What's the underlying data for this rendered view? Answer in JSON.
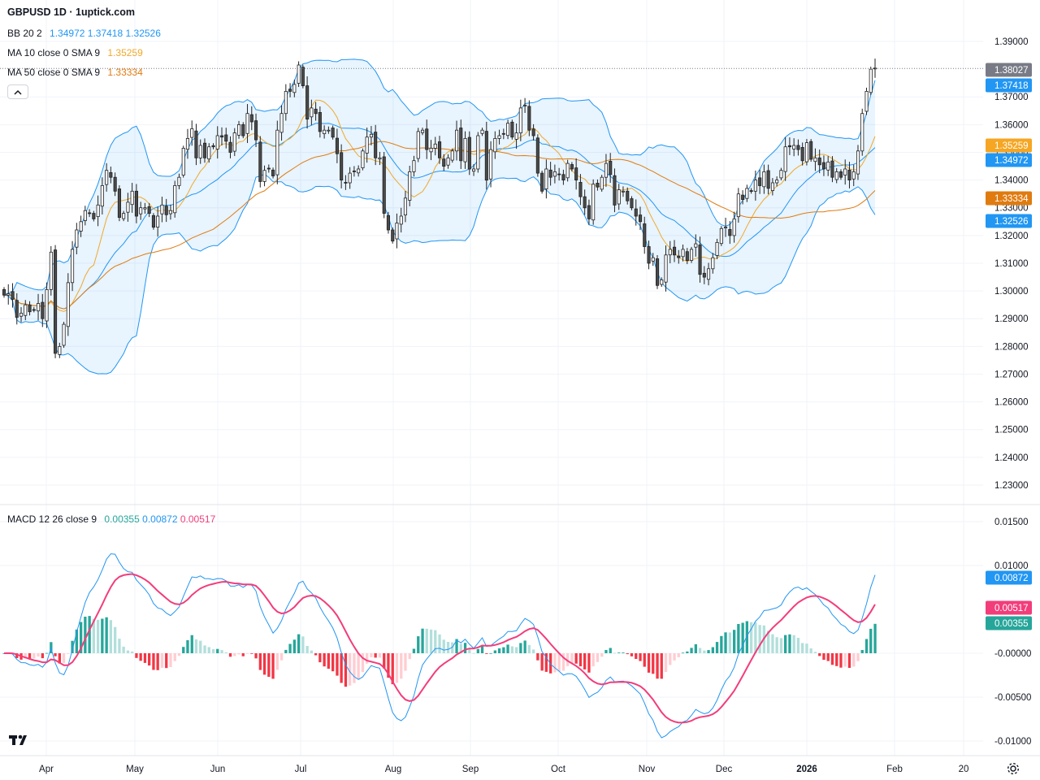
{
  "header": {
    "title": "GBPUSD 1D · 1uptick.com",
    "bb": {
      "label": "BB 20 2",
      "basis": "1.34972",
      "upper": "1.37418",
      "lower": "1.32526"
    },
    "ma10": {
      "label": "MA 10 close 0 SMA 9",
      "value": "1.35259"
    },
    "ma50": {
      "label": "MA 50 close 0 SMA 9",
      "value": "1.33334"
    },
    "macd": {
      "label": "MACD 12 26 close 9",
      "hist": "0.00355",
      "macd": "0.00872",
      "signal": "0.00517"
    }
  },
  "colors": {
    "up_body": "#ffffff",
    "down_body": "#4a4a4a",
    "wick": "#222222",
    "bb_band": "#2196f3",
    "bb_fill": "#2196f31a",
    "ma10": "#f0a92a",
    "ma50": "#e07b0f",
    "macd_line": "#2196f3",
    "signal_line": "#f23d7b",
    "hist_pos_strong": "#26a69a",
    "hist_pos_weak": "#b2dfdb",
    "hist_neg_strong": "#f23645",
    "hist_neg_weak": "#ffcdd2",
    "last_price": "#787b86"
  },
  "icons": {
    "logo": "tradingview-logo-icon",
    "settings": "gear-icon",
    "collapse": "chevron-up-icon"
  },
  "chart_data": [
    {
      "type": "candlestick",
      "title": "GBPUSD 1D · 1uptick.com",
      "ylim": [
        1.2255,
        1.3925
      ],
      "y_ticks": [
        "1.39000",
        "1.37000",
        "1.36000",
        "1.35000",
        "1.34000",
        "1.33000",
        "1.32000",
        "1.31000",
        "1.30000",
        "1.29000",
        "1.28000",
        "1.27000",
        "1.26000",
        "1.25000",
        "1.24000",
        "1.23000"
      ],
      "x_ticks": [
        "Apr",
        "May",
        "Jun",
        "Jul",
        "Aug",
        "Sep",
        "Oct",
        "Nov",
        "Dec",
        "2026",
        "Feb",
        "20"
      ],
      "grid": true,
      "price_tags": [
        {
          "name": "last",
          "value": "1.38027"
        },
        {
          "name": "bb_upper",
          "value": "1.37418"
        },
        {
          "name": "ma10",
          "value": "1.35259"
        },
        {
          "name": "bb_basis",
          "value": "1.34972"
        },
        {
          "name": "ma50",
          "value": "1.33334"
        },
        {
          "name": "bb_lower",
          "value": "1.32526"
        }
      ],
      "close": [
        1.2985,
        1.299,
        1.297,
        1.2905,
        1.292,
        1.295,
        1.2925,
        1.2932,
        1.2955,
        1.29,
        1.3005,
        1.314,
        1.2775,
        1.28,
        1.288,
        1.303,
        1.315,
        1.322,
        1.325,
        1.329,
        1.328,
        1.326,
        1.331,
        1.338,
        1.3435,
        1.341,
        1.336,
        1.3265,
        1.328,
        1.332,
        1.336,
        1.327,
        1.33,
        1.33,
        1.328,
        1.323,
        1.327,
        1.331,
        1.3275,
        1.329,
        1.338,
        1.341,
        1.3515,
        1.355,
        1.3585,
        1.348,
        1.3525,
        1.348,
        1.352,
        1.352,
        1.356,
        1.3555,
        1.354,
        1.35,
        1.357,
        1.36,
        1.356,
        1.364,
        1.361,
        1.3545,
        1.3395,
        1.3435,
        1.344,
        1.3415,
        1.358,
        1.364,
        1.372,
        1.372,
        1.3745,
        1.3815,
        1.374,
        1.362,
        1.366,
        1.364,
        1.3575,
        1.358,
        1.358,
        1.3555,
        1.3495,
        1.34,
        1.339,
        1.3425,
        1.343,
        1.344,
        1.3505,
        1.3555,
        1.3565,
        1.348,
        1.348,
        1.328,
        1.322,
        1.318,
        1.3245,
        1.327,
        1.3335,
        1.343,
        1.347,
        1.3575,
        1.358,
        1.351,
        1.3515,
        1.353,
        1.348,
        1.345,
        1.348,
        1.3505,
        1.358,
        1.347,
        1.355,
        1.344,
        1.344,
        1.356,
        1.358,
        1.34,
        1.351,
        1.355,
        1.356,
        1.3565,
        1.3605,
        1.3555,
        1.357,
        1.366,
        1.367,
        1.358,
        1.356,
        1.3425,
        1.336,
        1.344,
        1.341,
        1.343,
        1.342,
        1.34,
        1.346,
        1.344,
        1.34,
        1.334,
        1.33,
        1.326,
        1.3385,
        1.3375,
        1.341,
        1.346,
        1.342,
        1.331,
        1.3365,
        1.336,
        1.3325,
        1.33,
        1.327,
        1.325,
        1.316,
        1.31,
        1.312,
        1.302,
        1.304,
        1.313,
        1.315,
        1.313,
        1.312,
        1.315,
        1.311,
        1.315,
        1.317,
        1.306,
        1.305,
        1.308,
        1.312,
        1.3175,
        1.3225,
        1.323,
        1.32,
        1.326,
        1.335,
        1.333,
        1.337,
        1.336,
        1.34,
        1.338,
        1.343,
        1.337,
        1.339,
        1.34,
        1.3435,
        1.352,
        1.352,
        1.3525,
        1.351,
        1.347,
        1.3535,
        1.3475,
        1.348,
        1.3455,
        1.344,
        1.3465,
        1.341,
        1.343,
        1.341,
        1.344,
        1.34,
        1.343,
        1.3505,
        1.364,
        1.372,
        1.38,
        1.3803
      ],
      "high_low_note": "OHLC per session approximated from the rendered candles",
      "bollinger": {
        "period": 20,
        "mult": 2,
        "basis": 1.34972,
        "upper": 1.37418,
        "lower": 1.32526
      },
      "ma10_last": 1.35259,
      "ma50_last": 1.33334
    },
    {
      "type": "macd",
      "title": "MACD 12 26 close 9",
      "ylim": [
        -0.0108,
        0.0165
      ],
      "y_ticks": [
        "0.01500",
        "0.01000",
        "-0.00000",
        "-0.00500",
        "-0.01000"
      ],
      "price_tags": [
        {
          "name": "macd",
          "value": "0.00872"
        },
        {
          "name": "signal",
          "value": "0.00517"
        },
        {
          "name": "histogram",
          "value": "0.00355"
        }
      ]
    }
  ]
}
